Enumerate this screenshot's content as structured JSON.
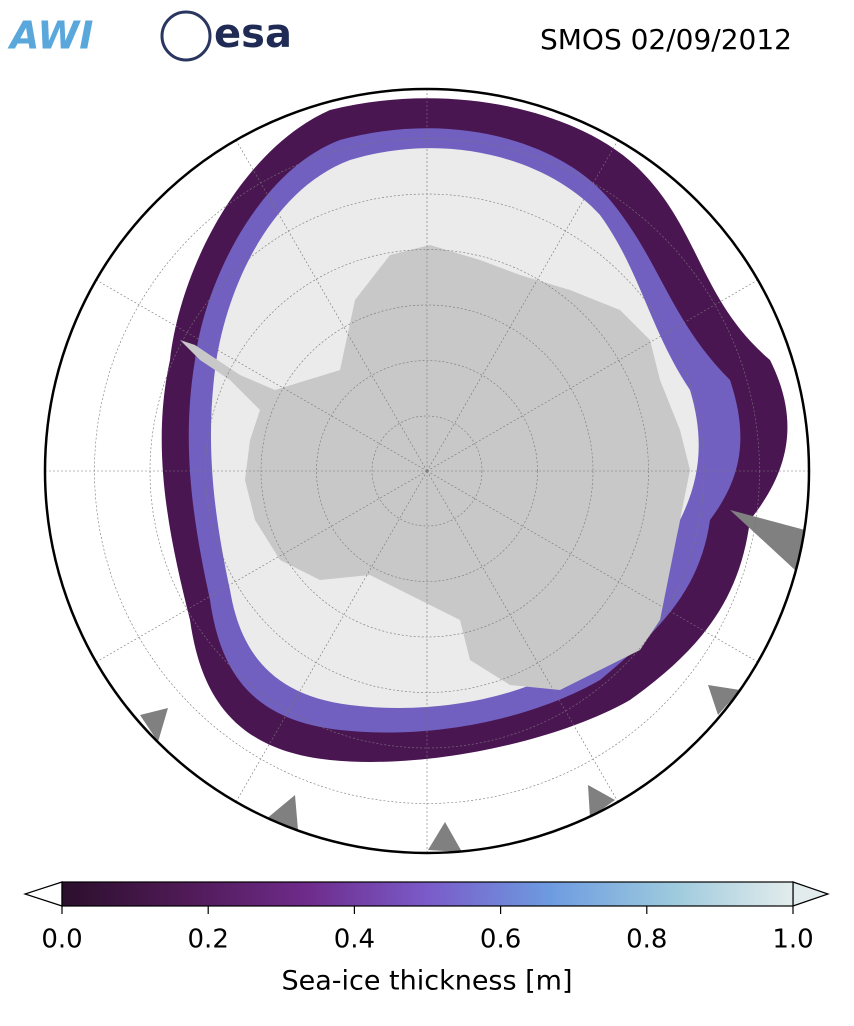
{
  "header": {
    "logos": [
      "AWI",
      "esa"
    ],
    "title": "SMOS 02/09/2012"
  },
  "colorbar": {
    "label": "Sea-ice thickness [m]",
    "lim": [
      0,
      1
    ],
    "ticks": [
      {
        "value": 0,
        "label": "0.0"
      },
      {
        "value": 0.2,
        "label": "0.2"
      },
      {
        "value": 0.4,
        "label": "0.4"
      },
      {
        "value": 0.6,
        "label": "0.6"
      },
      {
        "value": 0.8,
        "label": "0.8"
      },
      {
        "value": 1,
        "label": "1.0"
      }
    ],
    "colormap": [
      "#2b0f2c",
      "#4f1a56",
      "#6e2b8a",
      "#7a5bc9",
      "#6d9be0",
      "#9cc9dd",
      "#e3ecec"
    ]
  }
}
